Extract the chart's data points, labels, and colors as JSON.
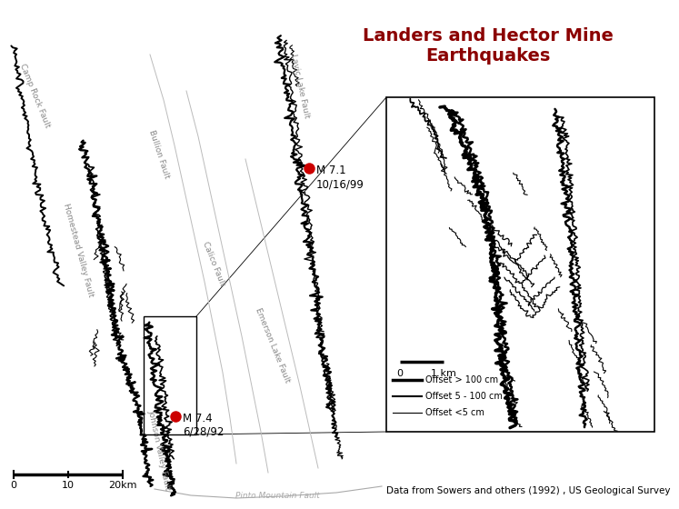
{
  "title_line1": "Landers and Hector Mine",
  "title_line2": "Earthquakes",
  "title_color": "#8B0000",
  "title_fontsize": 14,
  "bg_color": "#ffffff",
  "caption": "Data from Sowers and others (1992) , US Geological Survey",
  "caption_fontsize": 7.5,
  "eq1_label": "M 7.1\n10/16/99",
  "eq2_label": "M 7.4\n6/28/92",
  "eq_color": "#cc0000",
  "eq_marker_size": 9,
  "fault_label_color": "#888888",
  "legend_offset_labels": [
    "Offset > 100 cm",
    "Offset 5 - 100 cm",
    "Offset <5 cm"
  ],
  "inset_scalebar_label": "1 km"
}
